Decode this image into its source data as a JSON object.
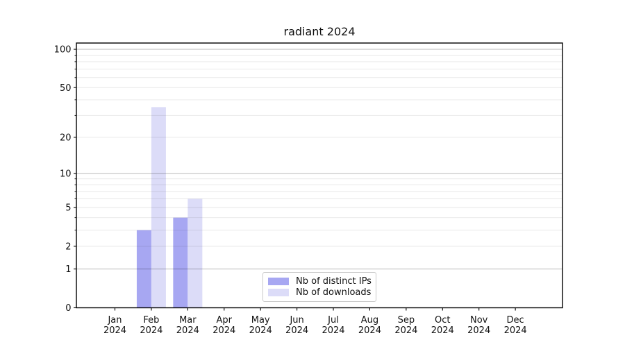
{
  "chart_data": {
    "type": "bar",
    "title": "radiant 2024",
    "x_year": "2024",
    "categories": [
      "Jan",
      "Feb",
      "Mar",
      "Apr",
      "May",
      "Jun",
      "Jul",
      "Aug",
      "Sep",
      "Oct",
      "Nov",
      "Dec"
    ],
    "series": [
      {
        "name": "Nb of distinct IPs",
        "color": "#a7a7f2",
        "values": [
          0,
          3,
          4,
          0,
          0,
          0,
          0,
          0,
          0,
          0,
          0,
          0
        ]
      },
      {
        "name": "Nb of downloads",
        "color": "#dcdcf8",
        "values": [
          0,
          35,
          6,
          0,
          0,
          0,
          0,
          0,
          0,
          0,
          0,
          0
        ]
      }
    ],
    "y_ticks": [
      0,
      1,
      2,
      5,
      10,
      20,
      50,
      100
    ],
    "y_tick_labels": [
      "0",
      "1",
      "2",
      "5",
      "10",
      "20",
      "50",
      "100"
    ],
    "y_scale": "log10(value+1)",
    "ylim": [
      0,
      112
    ],
    "xlabel": "",
    "ylabel": "",
    "grid": "horizontal",
    "legend": {
      "position": "lower-center-inside",
      "items": [
        "Nb of distinct IPs",
        "Nb of downloads"
      ]
    }
  }
}
